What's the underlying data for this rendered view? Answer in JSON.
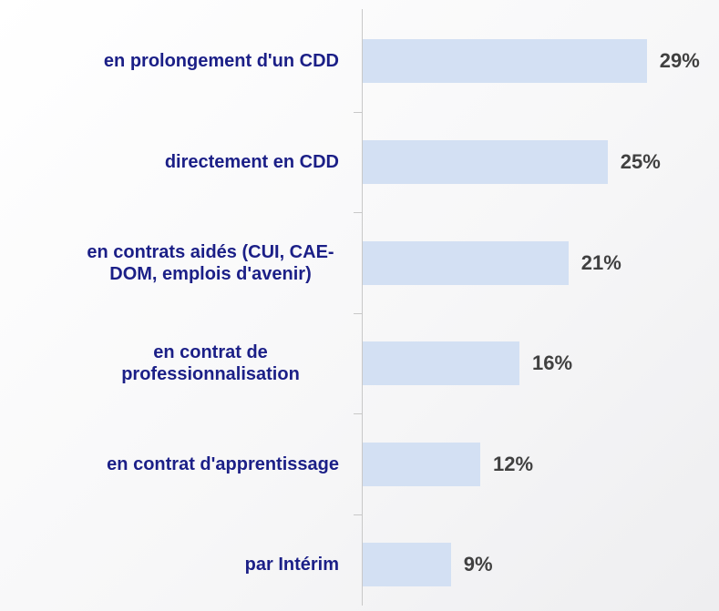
{
  "chart_data": {
    "type": "bar",
    "orientation": "horizontal",
    "categories": [
      "en prolongement d'un CDD",
      "directement en CDD",
      "en contrats aidés (CUI, CAE-DOM, emplois d'avenir)",
      "en contrat de professionnalisation",
      "en contrat d'apprentissage",
      "par Intérim"
    ],
    "values": [
      29,
      25,
      21,
      16,
      12,
      9
    ],
    "value_labels": [
      "29%",
      "25%",
      "21%",
      "16%",
      "12%",
      "9%"
    ],
    "color": "#d3e0f3"
  }
}
